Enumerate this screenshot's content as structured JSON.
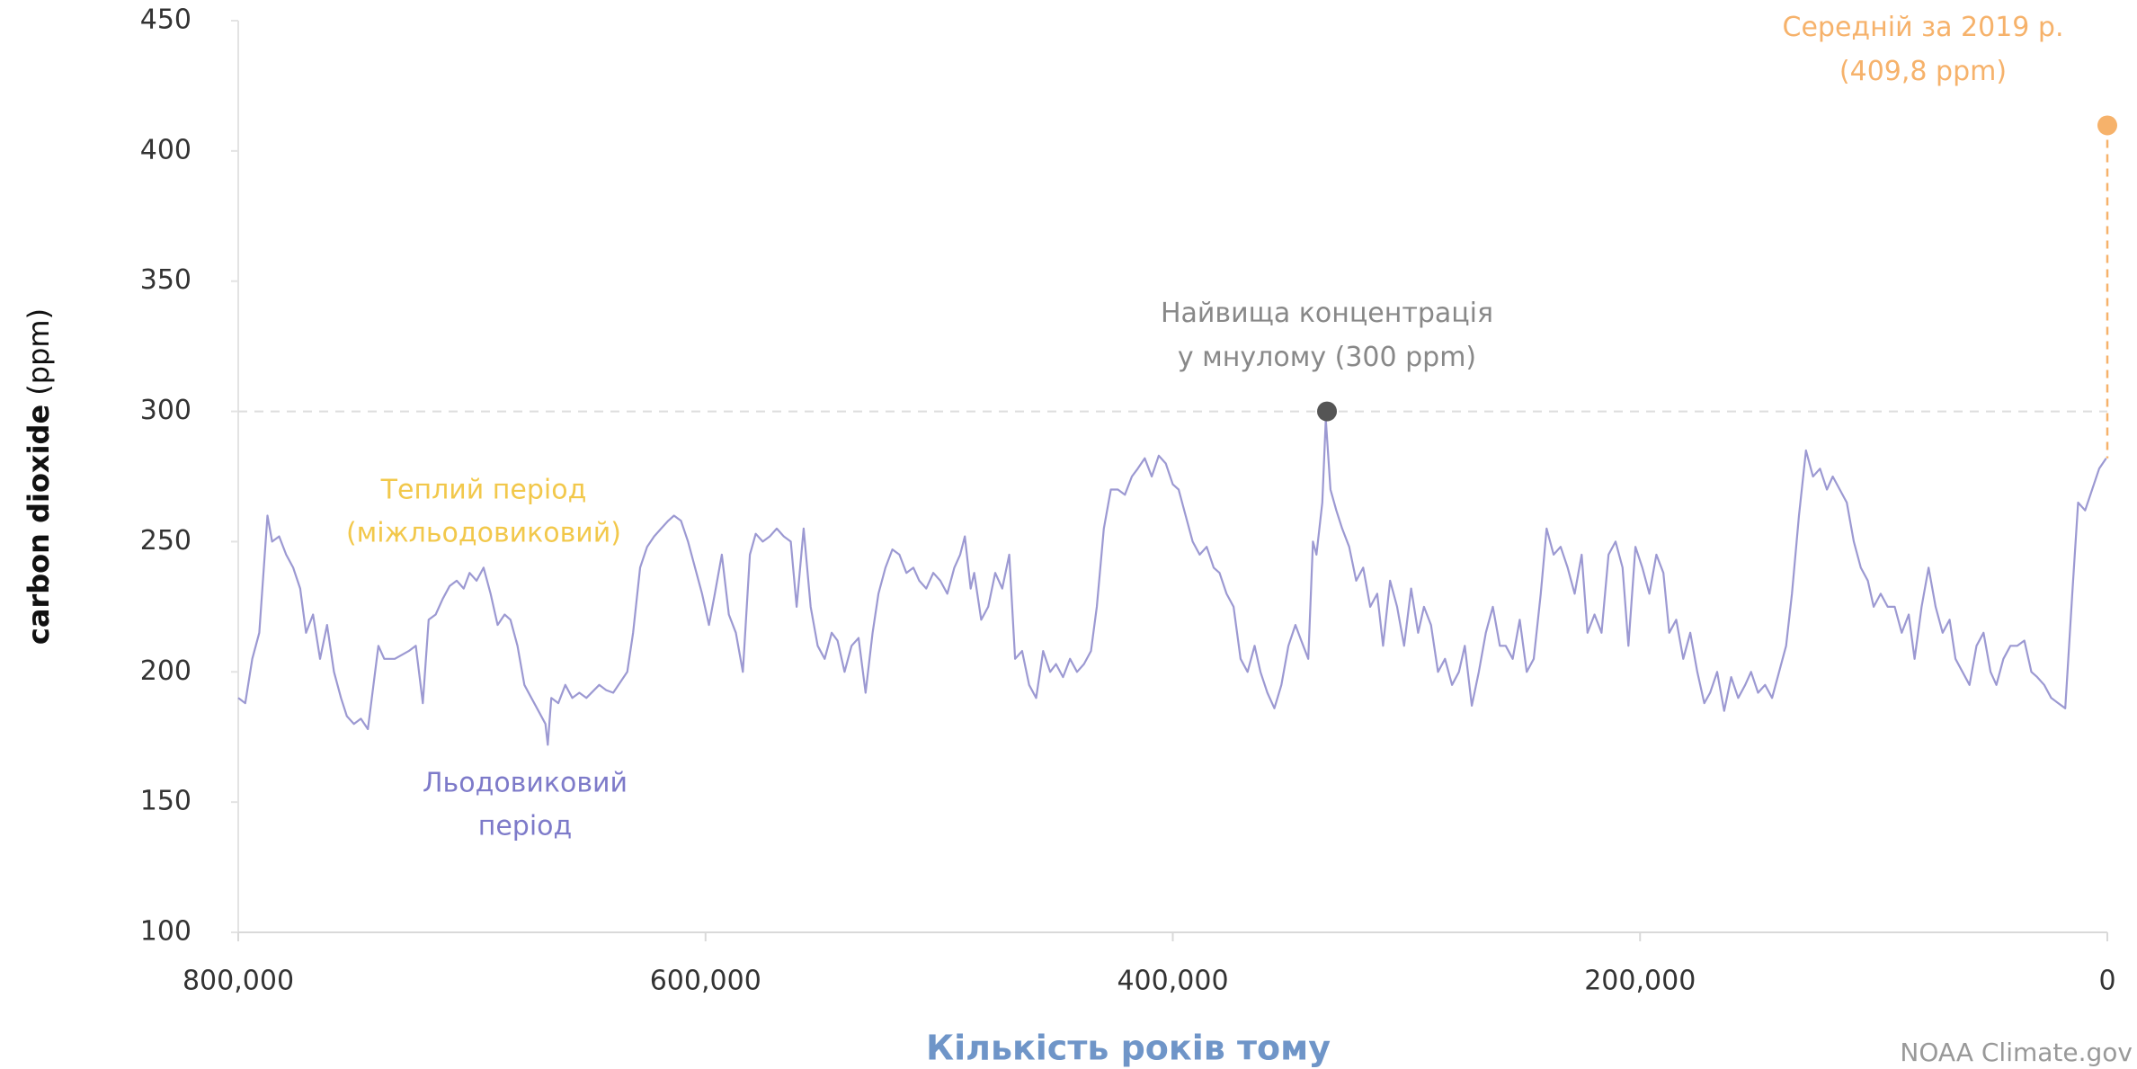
{
  "chart_data": {
    "type": "line",
    "x_label": "Кількість років тому",
    "y_label": "carbon dioxide",
    "y_label_unit": "(ppm)",
    "source": "NOAA Climate.gov",
    "xlim": [
      800000,
      0
    ],
    "ylim": [
      100,
      450
    ],
    "xticks": [
      {
        "value": 800000,
        "label": "800,000"
      },
      {
        "value": 600000,
        "label": "600,000"
      },
      {
        "value": 400000,
        "label": "400,000"
      },
      {
        "value": 200000,
        "label": "200,000"
      },
      0
    ],
    "yticks": [
      100,
      150,
      200,
      250,
      300,
      350,
      400,
      450
    ],
    "x": [
      800000,
      797000,
      794000,
      791000,
      787500,
      785500,
      782500,
      779500,
      776500,
      773500,
      771000,
      768000,
      765000,
      762000,
      759000,
      756000,
      753500,
      750500,
      747500,
      744500,
      740000,
      737500,
      733000,
      727000,
      724000,
      721000,
      718500,
      715500,
      712500,
      709500,
      706500,
      703500,
      701000,
      698000,
      695000,
      692000,
      689000,
      686000,
      683500,
      680500,
      677500,
      674500,
      671500,
      668500,
      667500,
      666000,
      663000,
      660000,
      657000,
      654000,
      651000,
      645500,
      642500,
      639500,
      633500,
      631000,
      628000,
      625000,
      622000,
      619000,
      616000,
      613500,
      610500,
      607500,
      604500,
      601500,
      598500,
      596000,
      593000,
      590000,
      587000,
      584000,
      581000,
      578500,
      575500,
      572500,
      569500,
      566500,
      563500,
      561000,
      558000,
      555000,
      552000,
      549000,
      546000,
      543500,
      540500,
      537500,
      534500,
      531500,
      528500,
      526000,
      523000,
      520000,
      517000,
      514000,
      511000,
      508500,
      505500,
      502500,
      499500,
      496500,
      493500,
      491000,
      489000,
      486500,
      485000,
      482000,
      479000,
      476000,
      473000,
      470000,
      467500,
      464500,
      461500,
      458500,
      455500,
      452500,
      450000,
      447000,
      444000,
      441000,
      438000,
      435000,
      432500,
      429500,
      426500,
      423500,
      420500,
      417500,
      415000,
      412000,
      409000,
      406000,
      403000,
      400000,
      397500,
      394500,
      391500,
      388500,
      385500,
      382500,
      380000,
      377000,
      374000,
      371000,
      368000,
      365000,
      362500,
      359500,
      356500,
      353500,
      350500,
      347500,
      345000,
      342000,
      340000,
      338500,
      336000,
      334500,
      332500,
      330000,
      327500,
      324500,
      321500,
      318500,
      315500,
      312500,
      310000,
      307000,
      304000,
      301000,
      298000,
      295000,
      292500,
      289500,
      286500,
      283500,
      280500,
      277500,
      275000,
      272000,
      269000,
      266000,
      263000,
      260000,
      257500,
      254500,
      251500,
      248500,
      245500,
      242500,
      240000,
      237000,
      234000,
      231000,
      228000,
      225000,
      222500,
      219500,
      216500,
      213500,
      210500,
      207500,
      205000,
      202000,
      199000,
      196000,
      193000,
      190000,
      187500,
      184500,
      181500,
      178500,
      175500,
      172500,
      170000,
      167000,
      164000,
      161000,
      158000,
      155000,
      152500,
      149500,
      146500,
      143500,
      140500,
      137500,
      135000,
      132000,
      129000,
      126000,
      123000,
      120000,
      117500,
      114500,
      111500,
      108500,
      105500,
      102500,
      100000,
      97000,
      94000,
      91000,
      88000,
      85000,
      82500,
      79500,
      76500,
      73500,
      70500,
      67500,
      65000,
      62000,
      59000,
      56000,
      53000,
      50000,
      47500,
      44500,
      41500,
      38500,
      35500,
      32500,
      30000,
      27000,
      24000,
      21000,
      18000,
      15000,
      12500,
      9500,
      6500,
      3500,
      500
    ],
    "series": [
      {
        "color": "#9c99d2",
        "values": [
          190,
          188,
          205,
          215,
          260,
          250,
          252,
          245,
          240,
          232,
          215,
          222,
          205,
          218,
          200,
          190,
          183,
          180,
          182,
          178,
          210,
          205,
          205,
          208,
          210,
          188,
          220,
          222,
          228,
          233,
          235,
          232,
          238,
          235,
          240,
          230,
          218,
          222,
          220,
          210,
          195,
          190,
          185,
          180,
          172,
          190,
          188,
          195,
          190,
          192,
          190,
          195,
          193,
          192,
          200,
          215,
          240,
          248,
          252,
          255,
          258,
          260,
          258,
          250,
          240,
          230,
          218,
          230,
          245,
          222,
          215,
          200,
          245,
          253,
          250,
          252,
          255,
          252,
          250,
          225,
          255,
          225,
          210,
          205,
          215,
          212,
          200,
          210,
          213,
          192,
          215,
          230,
          240,
          247,
          245,
          238,
          240,
          235,
          232,
          238,
          235,
          230,
          240,
          245,
          252,
          232,
          238,
          220,
          225,
          238,
          232,
          245,
          205,
          208,
          195,
          190,
          208,
          200,
          203,
          198,
          205,
          200,
          203,
          208,
          225,
          255,
          270,
          270,
          268,
          275,
          278,
          282,
          275,
          283,
          280,
          272,
          270,
          260,
          250,
          245,
          248,
          240,
          238,
          230,
          225,
          205,
          200,
          210,
          200,
          192,
          186,
          195,
          210,
          218,
          212,
          205,
          250,
          245,
          265,
          297,
          270,
          262,
          255,
          248,
          235,
          240,
          225,
          230,
          210,
          235,
          225,
          210,
          232,
          215,
          225,
          218,
          200,
          205,
          195,
          200,
          210,
          187,
          200,
          215,
          225,
          210,
          210,
          205,
          220,
          200,
          205,
          230,
          255,
          245,
          248,
          240,
          230,
          245,
          215,
          222,
          215,
          245,
          250,
          240,
          210,
          248,
          240,
          230,
          245,
          238,
          215,
          220,
          205,
          215,
          200,
          188,
          192,
          200,
          185,
          198,
          190,
          195,
          200,
          192,
          195,
          190,
          200,
          210,
          230,
          260,
          285,
          275,
          278,
          270,
          275,
          270,
          265,
          250,
          240,
          235,
          225,
          230,
          225,
          225,
          215,
          222,
          205,
          225,
          240,
          225,
          215,
          220,
          205,
          200,
          195,
          210,
          215,
          200,
          195,
          205,
          210,
          210,
          212,
          200,
          198,
          195,
          190,
          188,
          186,
          230,
          265,
          262,
          270,
          278,
          282
        ]
      }
    ],
    "highlights": [
      {
        "label": [
          "Найвища концентрація",
          "у мнулому (300 ppm)"
        ],
        "x": 334000,
        "value": 300,
        "color": "#555555"
      },
      {
        "label": [
          "Середній за 2019 р.",
          "(409,8 ppm)"
        ],
        "x": 0,
        "value": 409.8,
        "color": "#f6b26b"
      }
    ],
    "annotations": [
      {
        "label": [
          "Теплий період",
          "(міжльодовиковий)"
        ],
        "color": "#f2c84b"
      },
      {
        "label": [
          "Льодовиковий",
          "період"
        ],
        "color": "#7d7ac9"
      }
    ]
  }
}
